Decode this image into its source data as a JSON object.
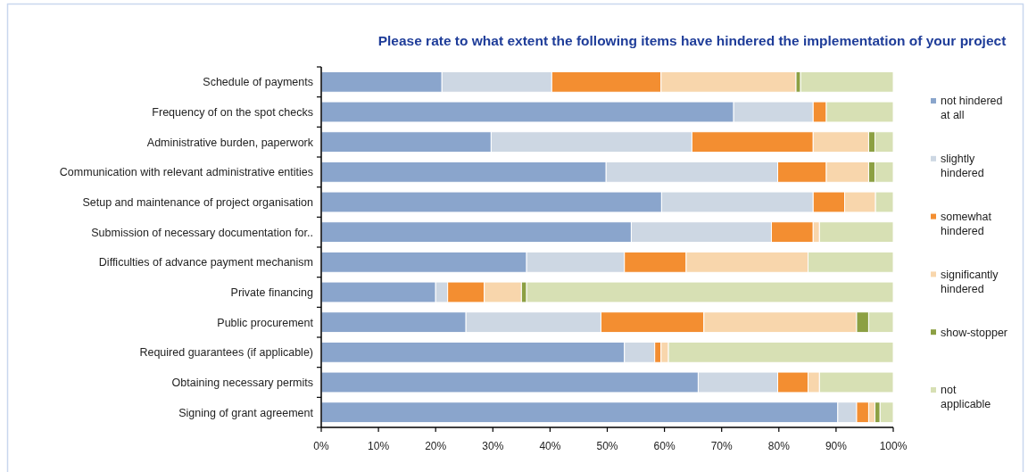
{
  "chart_data": {
    "type": "bar",
    "orientation": "horizontal",
    "stacked": true,
    "title": "Please rate to what extent the following items have hindered the implementation of your project",
    "categories": [
      "Schedule of payments",
      "Frequency of on the spot checks",
      "Administrative burden, paperwork",
      "Communication with relevant administrative entities",
      "Setup and maintenance of project organisation",
      "Submission of necessary documentation for..",
      "Difficulties of advance payment mechanism",
      "Private financing",
      "Public procurement",
      "Required guarantees (if applicable)",
      "Obtaining necessary permits",
      "Signing of grant agreement"
    ],
    "series": [
      {
        "name": "not hindered at all",
        "color": "#8aa5cc",
        "values": [
          21.1,
          72.1,
          29.7,
          49.8,
          59.5,
          54.2,
          35.9,
          20.0,
          25.3,
          53.0,
          65.9,
          90.3
        ]
      },
      {
        "name": "slightly hindered",
        "color": "#cdd7e3",
        "values": [
          19.2,
          13.9,
          35.1,
          30.0,
          26.5,
          24.5,
          17.1,
          2.1,
          23.6,
          5.3,
          13.9,
          3.3
        ]
      },
      {
        "name": "somewhat hindered",
        "color": "#f38e31",
        "values": [
          19.1,
          2.3,
          21.2,
          8.5,
          5.5,
          7.3,
          10.8,
          6.4,
          18.0,
          1.1,
          5.3,
          2.1
        ]
      },
      {
        "name": "significantly hindered",
        "color": "#f8d6ac",
        "values": [
          23.6,
          0,
          9.7,
          7.4,
          5.4,
          1.1,
          21.3,
          6.5,
          26.7,
          1.3,
          2.0,
          1.1
        ]
      },
      {
        "name": "show-stopper",
        "color": "#8ca043",
        "values": [
          0.8,
          0,
          1.1,
          1.1,
          0,
          0,
          0,
          0.9,
          2.1,
          0,
          0,
          0.9
        ]
      },
      {
        "name": "not applicable",
        "color": "#d7e0b4",
        "values": [
          16.2,
          11.7,
          3.2,
          3.2,
          3.1,
          12.9,
          14.9,
          64.1,
          4.3,
          39.3,
          12.9,
          2.3
        ]
      }
    ],
    "xlim": [
      0,
      100
    ],
    "xticks": [
      {
        "value": 0,
        "label": "0%"
      },
      {
        "value": 10,
        "label": "10%"
      },
      {
        "value": 20,
        "label": "20%"
      },
      {
        "value": 30,
        "label": "30%"
      },
      {
        "value": 40,
        "label": "40%"
      },
      {
        "value": 50,
        "label": "50%"
      },
      {
        "value": 60,
        "label": "60%"
      },
      {
        "value": 70,
        "label": "70%"
      },
      {
        "value": 80,
        "label": "80%"
      },
      {
        "value": 90,
        "label": "90%"
      },
      {
        "value": 100,
        "label": "100%"
      }
    ],
    "legend": "right",
    "grid": false
  }
}
